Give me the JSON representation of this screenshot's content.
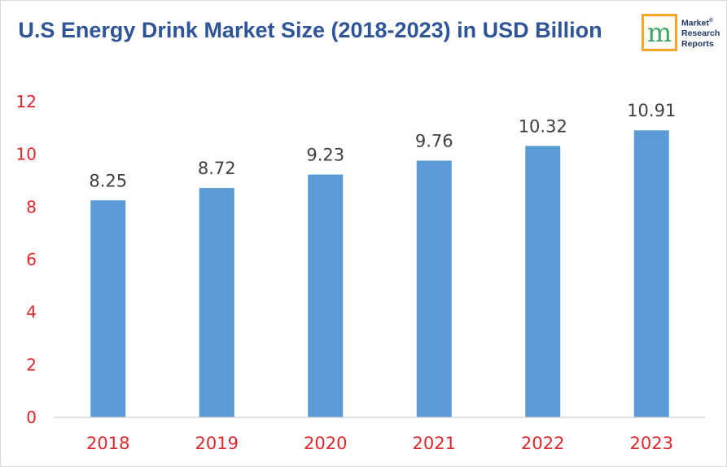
{
  "logo": {
    "letter": "m",
    "line1": "Market",
    "line2": "Research",
    "line3": "Reports",
    "registered": "®"
  },
  "colors": {
    "title": "#2f5597",
    "bar": "#5b9bd5",
    "tick_labels": "#e0262a",
    "data_labels": "#404040",
    "logo_border": "#f5a623"
  },
  "chart_data": {
    "type": "bar",
    "title": "U.S Energy Drink Market Size (2018-2023) in USD Billion",
    "xlabel": "",
    "ylabel": "",
    "categories": [
      "2018",
      "2019",
      "2020",
      "2021",
      "2022",
      "2023"
    ],
    "values": [
      8.25,
      8.72,
      9.23,
      9.76,
      10.32,
      10.91
    ],
    "data_labels": [
      "8.25",
      "8.72",
      "9.23",
      "9.76",
      "10.32",
      "10.91"
    ],
    "ylim": [
      0,
      12
    ],
    "yticks": [
      "0",
      "2",
      "4",
      "6",
      "8",
      "10",
      "12"
    ],
    "grid": false,
    "legend": "none"
  }
}
